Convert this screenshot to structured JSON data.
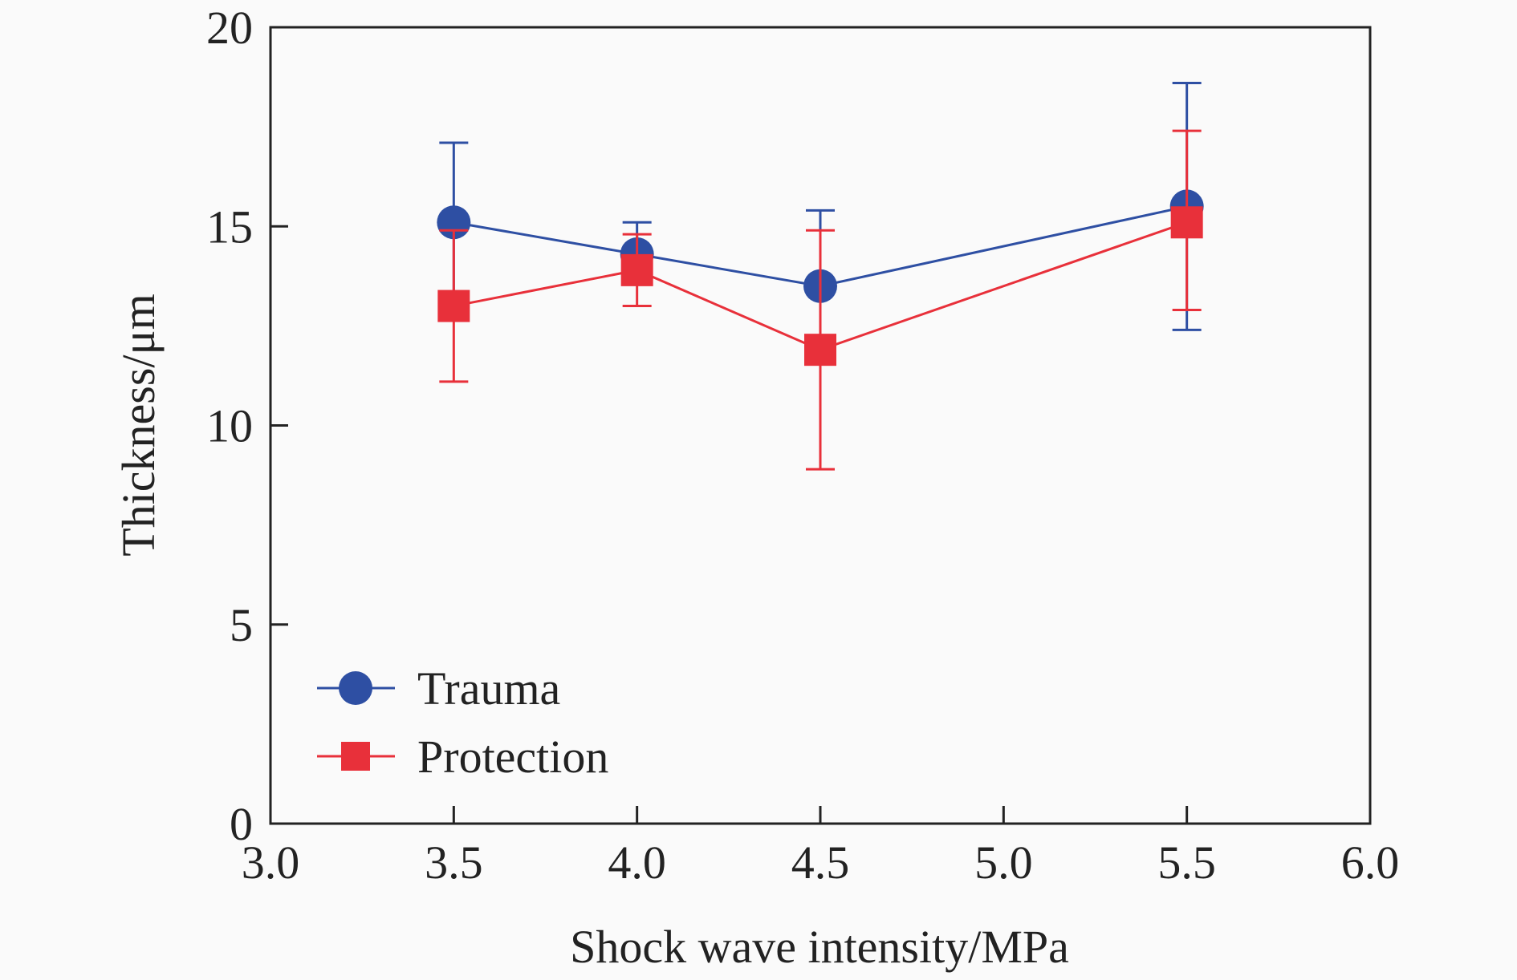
{
  "chart_data": {
    "type": "line",
    "xlabel": "Shock wave intensity/MPa",
    "ylabel": "Thickness/μm",
    "xlim": [
      3.0,
      6.0
    ],
    "ylim": [
      0,
      20
    ],
    "xticks": [
      "3.0",
      "3.5",
      "4.0",
      "4.5",
      "5.0",
      "5.5",
      "6.0"
    ],
    "yticks": [
      "0",
      "5",
      "10",
      "15",
      "20"
    ],
    "grid": false,
    "legend_position": "bottom-left",
    "series": [
      {
        "name": "Trauma",
        "marker": "circle",
        "color": "#2e4fa3",
        "x": [
          3.5,
          4.0,
          4.5,
          5.5
        ],
        "y": [
          15.1,
          14.3,
          13.5,
          15.5
        ],
        "err_low": [
          13.1,
          13.6,
          11.6,
          12.4
        ],
        "err_high": [
          17.1,
          15.1,
          15.4,
          18.6
        ]
      },
      {
        "name": "Protection",
        "marker": "square",
        "color": "#e8303a",
        "x": [
          3.5,
          4.0,
          4.5,
          5.5
        ],
        "y": [
          13.0,
          13.9,
          11.9,
          15.1
        ],
        "err_low": [
          11.1,
          13.0,
          8.9,
          12.9
        ],
        "err_high": [
          14.9,
          14.8,
          14.9,
          17.4
        ]
      }
    ]
  }
}
